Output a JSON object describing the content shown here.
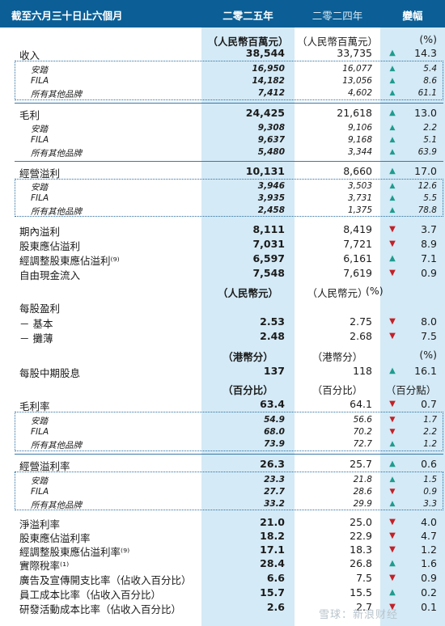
{
  "header": {
    "period": "截至六月三十日止六個月",
    "y2025": "二零二五年",
    "y2024": "二零二四年",
    "change": "變幅"
  },
  "units": {
    "rmb_m": {
      "y2025": "（人民幣百萬元）",
      "y2024": "（人民幣百萬元）",
      "change": "(%)"
    },
    "rmb": {
      "y2025": "（人民幣元）",
      "y2024": "（人民幣元）",
      "change": "(%)"
    },
    "hkd": {
      "y2025": "（港幣分）",
      "y2024": "（港幣分）",
      "change": "(%)"
    },
    "pct": {
      "y2025": "（百分比）",
      "y2024": "（百分比）",
      "change": "（百分點）"
    }
  },
  "rows": {
    "revenue": {
      "label": "收入",
      "y2025": "38,544",
      "y2024": "33,735",
      "dir": "up",
      "change": "14.3"
    },
    "revenue_anta": {
      "label": "安踏",
      "y2025": "16,950",
      "y2024": "16,077",
      "dir": "up",
      "change": "5.4"
    },
    "revenue_fila": {
      "label": "FILA",
      "y2025": "14,182",
      "y2024": "13,056",
      "dir": "up",
      "change": "8.6"
    },
    "revenue_other": {
      "label": "所有其他品牌",
      "y2025": "7,412",
      "y2024": "4,602",
      "dir": "up",
      "change": "61.1"
    },
    "gross_profit": {
      "label": "毛利",
      "y2025": "24,425",
      "y2024": "21,618",
      "dir": "up",
      "change": "13.0"
    },
    "gp_anta": {
      "label": "安踏",
      "y2025": "9,308",
      "y2024": "9,106",
      "dir": "up",
      "change": "2.2"
    },
    "gp_fila": {
      "label": "FILA",
      "y2025": "9,637",
      "y2024": "9,168",
      "dir": "up",
      "change": "5.1"
    },
    "gp_other": {
      "label": "所有其他品牌",
      "y2025": "5,480",
      "y2024": "3,344",
      "dir": "up",
      "change": "63.9"
    },
    "op_profit": {
      "label": "經營溢利",
      "y2025": "10,131",
      "y2024": "8,660",
      "dir": "up",
      "change": "17.0"
    },
    "op_anta": {
      "label": "安踏",
      "y2025": "3,946",
      "y2024": "3,503",
      "dir": "up",
      "change": "12.6"
    },
    "op_fila": {
      "label": "FILA",
      "y2025": "3,935",
      "y2024": "3,731",
      "dir": "up",
      "change": "5.5"
    },
    "op_other": {
      "label": "所有其他品牌",
      "y2025": "2,458",
      "y2024": "1,375",
      "dir": "up",
      "change": "78.8"
    },
    "period_profit": {
      "label": "期內溢利",
      "y2025": "8,111",
      "y2024": "8,419",
      "dir": "down",
      "change": "3.7"
    },
    "attr_profit": {
      "label": "股東應佔溢利",
      "y2025": "7,031",
      "y2024": "7,721",
      "dir": "down",
      "change": "8.9"
    },
    "adj_attr_profit": {
      "label": "經調整股東應佔溢利⁽⁹⁾",
      "y2025": "6,597",
      "y2024": "6,161",
      "dir": "up",
      "change": "7.1"
    },
    "fcf": {
      "label": "自由現金流入",
      "y2025": "7,548",
      "y2024": "7,619",
      "dir": "down",
      "change": "0.9"
    },
    "eps": {
      "label": "每股盈利"
    },
    "eps_basic": {
      "label": "－ 基本",
      "y2025": "2.53",
      "y2024": "2.75",
      "dir": "down",
      "change": "8.0"
    },
    "eps_diluted": {
      "label": "－ 攤薄",
      "y2025": "2.48",
      "y2024": "2.68",
      "dir": "down",
      "change": "7.5"
    },
    "dividend": {
      "label": "每股中期股息",
      "y2025": "137",
      "y2024": "118",
      "dir": "up",
      "change": "16.1"
    },
    "gpm": {
      "label": "毛利率",
      "y2025": "63.4",
      "y2024": "64.1",
      "dir": "down",
      "change": "0.7"
    },
    "gpm_anta": {
      "label": "安踏",
      "y2025": "54.9",
      "y2024": "56.6",
      "dir": "down",
      "change": "1.7"
    },
    "gpm_fila": {
      "label": "FILA",
      "y2025": "68.0",
      "y2024": "70.2",
      "dir": "down",
      "change": "2.2"
    },
    "gpm_other": {
      "label": "所有其他品牌",
      "y2025": "73.9",
      "y2024": "72.7",
      "dir": "up",
      "change": "1.2"
    },
    "opm": {
      "label": "經營溢利率",
      "y2025": "26.3",
      "y2024": "25.7",
      "dir": "up",
      "change": "0.6"
    },
    "opm_anta": {
      "label": "安踏",
      "y2025": "23.3",
      "y2024": "21.8",
      "dir": "up",
      "change": "1.5"
    },
    "opm_fila": {
      "label": "FILA",
      "y2025": "27.7",
      "y2024": "28.6",
      "dir": "down",
      "change": "0.9"
    },
    "opm_other": {
      "label": "所有其他品牌",
      "y2025": "33.2",
      "y2024": "29.9",
      "dir": "up",
      "change": "3.3"
    },
    "npm": {
      "label": "淨溢利率",
      "y2025": "21.0",
      "y2024": "25.0",
      "dir": "down",
      "change": "4.0"
    },
    "attr_margin": {
      "label": "股東應佔溢利率",
      "y2025": "18.2",
      "y2024": "22.9",
      "dir": "down",
      "change": "4.7"
    },
    "adj_attr_margin": {
      "label": "經調整股東應佔溢利率⁽⁹⁾",
      "y2025": "17.1",
      "y2024": "18.3",
      "dir": "down",
      "change": "1.2"
    },
    "tax_rate": {
      "label": "實際稅率⁽¹⁾",
      "y2025": "28.4",
      "y2024": "26.8",
      "dir": "up",
      "change": "1.6"
    },
    "ad_ratio": {
      "label": "廣告及宣傳開支比率（佔收入百分比）",
      "y2025": "6.6",
      "y2024": "7.5",
      "dir": "down",
      "change": "0.9"
    },
    "staff_ratio": {
      "label": "員工成本比率（佔收入百分比）",
      "y2025": "15.7",
      "y2024": "15.5",
      "dir": "up",
      "change": "0.2"
    },
    "rd_ratio": {
      "label": "研發活動成本比率（佔收入百分比）",
      "y2025": "2.6",
      "y2024": "2.7",
      "dir": "down",
      "change": "0.1"
    }
  },
  "watermark": "雪球：新浪财经"
}
